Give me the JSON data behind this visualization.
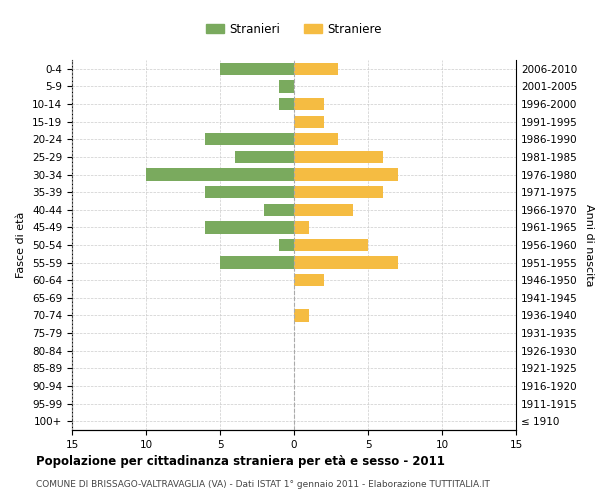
{
  "age_groups": [
    "100+",
    "95-99",
    "90-94",
    "85-89",
    "80-84",
    "75-79",
    "70-74",
    "65-69",
    "60-64",
    "55-59",
    "50-54",
    "45-49",
    "40-44",
    "35-39",
    "30-34",
    "25-29",
    "20-24",
    "15-19",
    "10-14",
    "5-9",
    "0-4"
  ],
  "birth_years": [
    "≤ 1910",
    "1911-1915",
    "1916-1920",
    "1921-1925",
    "1926-1930",
    "1931-1935",
    "1936-1940",
    "1941-1945",
    "1946-1950",
    "1951-1955",
    "1956-1960",
    "1961-1965",
    "1966-1970",
    "1971-1975",
    "1976-1980",
    "1981-1985",
    "1986-1990",
    "1991-1995",
    "1996-2000",
    "2001-2005",
    "2006-2010"
  ],
  "males": [
    0,
    0,
    0,
    0,
    0,
    0,
    0,
    0,
    0,
    5,
    1,
    6,
    2,
    6,
    10,
    4,
    6,
    0,
    1,
    1,
    5
  ],
  "females": [
    0,
    0,
    0,
    0,
    0,
    0,
    1,
    0,
    2,
    7,
    5,
    1,
    4,
    6,
    7,
    6,
    3,
    2,
    2,
    0,
    3
  ],
  "male_color": "#7aaa5e",
  "female_color": "#f5bc42",
  "title": "Popolazione per cittadinanza straniera per età e sesso - 2011",
  "subtitle": "COMUNE DI BRISSAGO-VALTRAVAGLIA (VA) - Dati ISTAT 1° gennaio 2011 - Elaborazione TUTTITALIA.IT",
  "ylabel_left": "Fasce di età",
  "ylabel_right": "Anni di nascita",
  "legend_male": "Stranieri",
  "legend_female": "Straniere",
  "xlim": 15,
  "background_color": "#ffffff",
  "grid_color": "#cccccc"
}
